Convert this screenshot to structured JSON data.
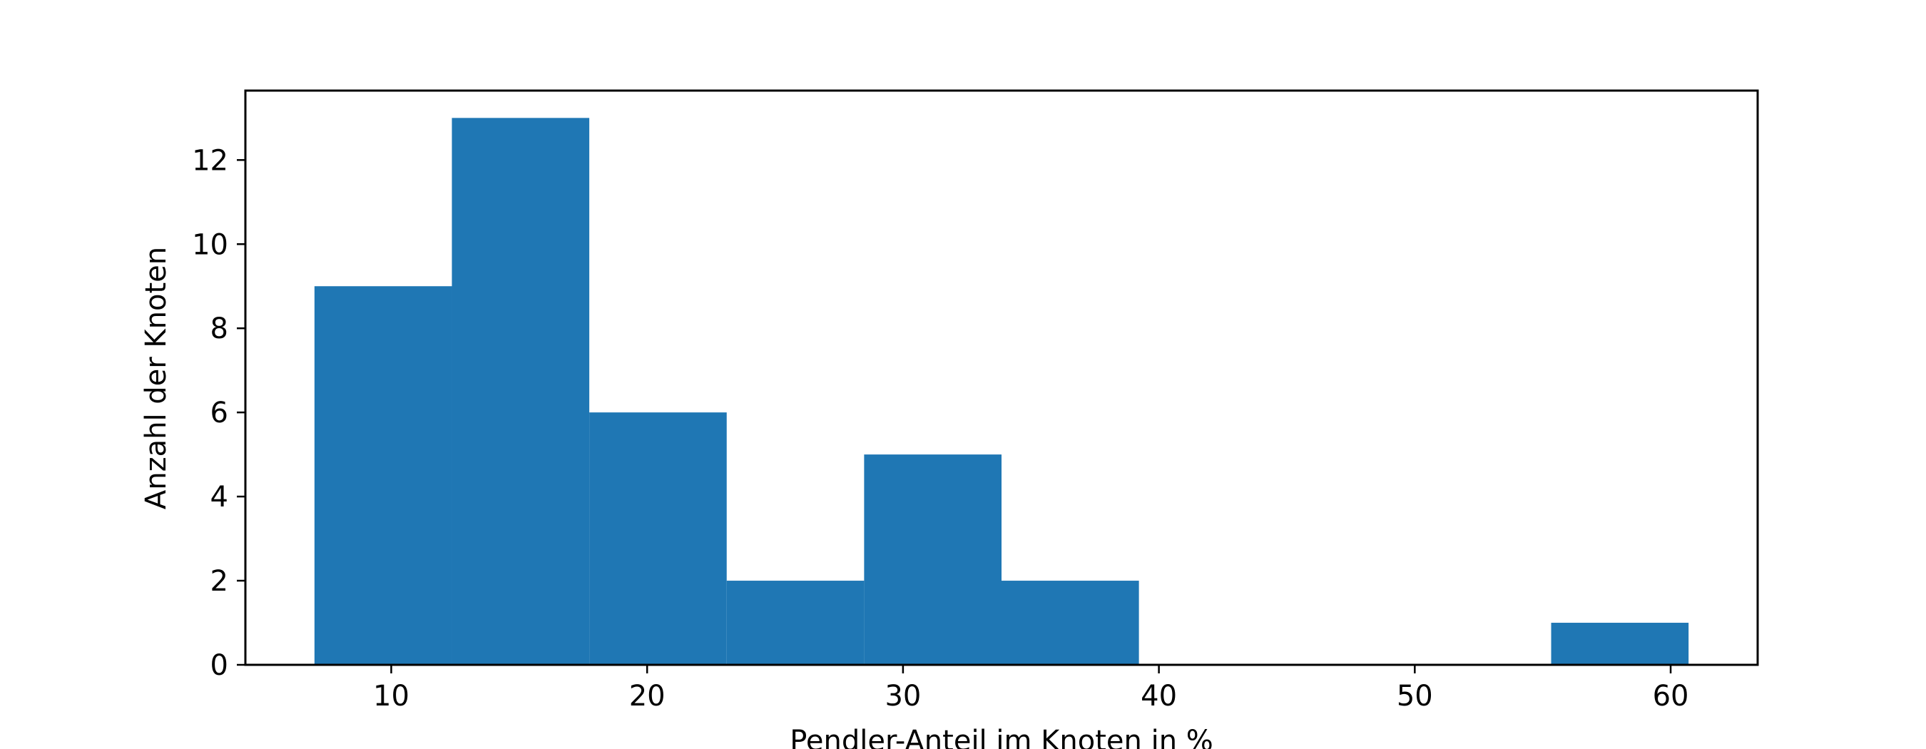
{
  "chart_data": {
    "type": "bar",
    "subtype": "histogram",
    "title": "",
    "xlabel": "Pendler-Anteil im Knoten in %",
    "ylabel": "Anzahl der Knoten",
    "bins": [
      {
        "from": 7.0,
        "to": 12.37,
        "count": 9
      },
      {
        "from": 12.37,
        "to": 17.74,
        "count": 13
      },
      {
        "from": 17.74,
        "to": 23.11,
        "count": 6
      },
      {
        "from": 23.11,
        "to": 28.48,
        "count": 2
      },
      {
        "from": 28.48,
        "to": 33.85,
        "count": 5
      },
      {
        "from": 33.85,
        "to": 39.22,
        "count": 2
      },
      {
        "from": 39.22,
        "to": 44.59,
        "count": 0
      },
      {
        "from": 44.59,
        "to": 49.96,
        "count": 0
      },
      {
        "from": 49.96,
        "to": 55.33,
        "count": 0
      },
      {
        "from": 55.33,
        "to": 60.7,
        "count": 1
      }
    ],
    "xlim": [
      4.3,
      63.4
    ],
    "ylim": [
      0,
      13.65
    ],
    "xticks": [
      10,
      20,
      30,
      40,
      50,
      60
    ],
    "yticks": [
      0,
      2,
      4,
      6,
      8,
      10,
      12
    ],
    "bar_color": "#1f77b4",
    "grid": false,
    "legend": "none"
  }
}
